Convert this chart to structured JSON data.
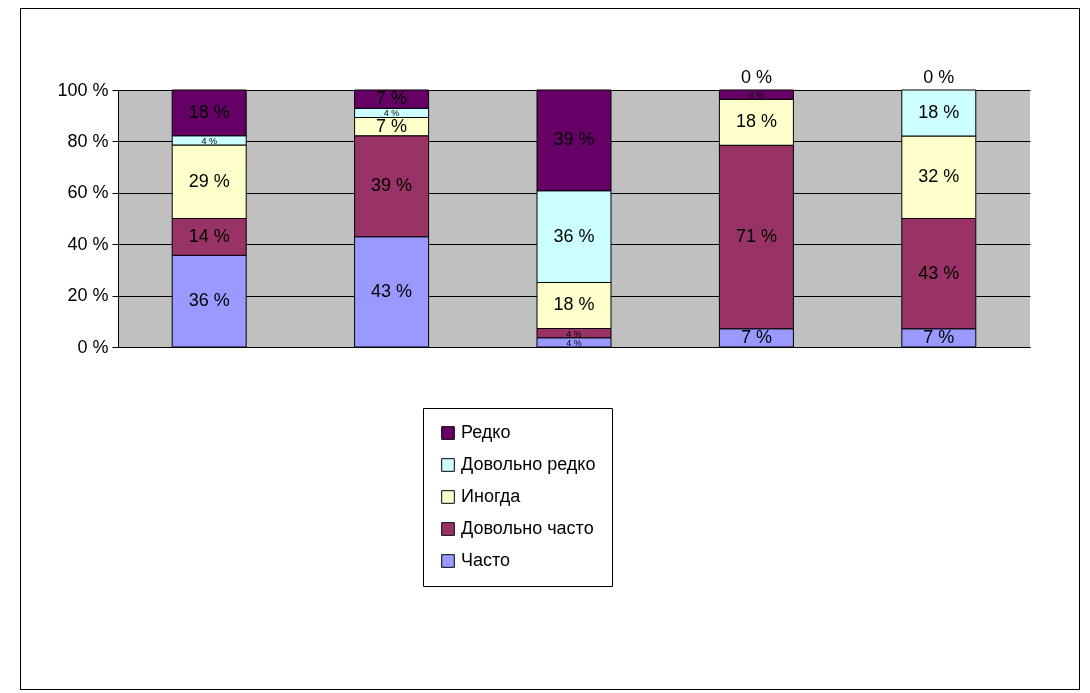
{
  "chart_data": {
    "type": "bar",
    "stacked": true,
    "categories": [
      null,
      null,
      null,
      null,
      null
    ],
    "ylim": [
      0,
      100
    ],
    "yticks": [
      {
        "value": 0,
        "label": "0 %"
      },
      {
        "value": 20,
        "label": "20 %"
      },
      {
        "value": 40,
        "label": "40 %"
      },
      {
        "value": 60,
        "label": "60 %"
      },
      {
        "value": 80,
        "label": "80 %"
      },
      {
        "value": 100,
        "label": "100 %"
      }
    ],
    "grid": "y",
    "legend": "bottom",
    "tick_labels": "y",
    "series": [
      {
        "name": "Часто",
        "color": "#9999ff",
        "values": [
          35.7,
          42.9,
          3.6,
          7.1,
          7.1
        ],
        "value_labels": [
          "36 %",
          "43 %",
          "4 %",
          "7 %",
          "7 %"
        ]
      },
      {
        "name": "Довольно часто",
        "color": "#993366",
        "values": [
          14.3,
          39.3,
          3.6,
          71.4,
          42.9
        ],
        "value_labels": [
          "14 %",
          "39 %",
          "4 %",
          "71 %",
          "43 %"
        ]
      },
      {
        "name": "Иногда",
        "color": "#ffffcc",
        "values": [
          28.6,
          7.1,
          17.9,
          17.9,
          32.1
        ],
        "value_labels": [
          "29 %",
          "7 %",
          "18 %",
          "18 %",
          "32 %"
        ]
      },
      {
        "name": "Довольно редко",
        "color": "#ccffff",
        "values": [
          3.6,
          3.6,
          35.7,
          0,
          17.9
        ],
        "value_labels": [
          "4 %",
          "4 %",
          "36 %",
          "0 %",
          "18 %"
        ]
      },
      {
        "name": "Редко",
        "color": "#660066",
        "values": [
          17.8,
          7.1,
          39.2,
          3.6,
          0
        ],
        "value_labels": [
          "18 %",
          "7 %",
          "39 %",
          "4 %",
          "0 %"
        ]
      }
    ]
  }
}
